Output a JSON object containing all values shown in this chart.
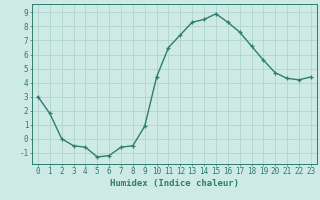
{
  "x": [
    0,
    1,
    2,
    3,
    4,
    5,
    6,
    7,
    8,
    9,
    10,
    11,
    12,
    13,
    14,
    15,
    16,
    17,
    18,
    19,
    20,
    21,
    22,
    23
  ],
  "y": [
    3.0,
    1.8,
    0.0,
    -0.5,
    -0.6,
    -1.3,
    -1.2,
    -0.6,
    -0.5,
    0.9,
    4.4,
    6.5,
    7.4,
    8.3,
    8.5,
    8.9,
    8.3,
    7.6,
    6.6,
    5.6,
    4.7,
    4.3,
    4.2,
    4.4
  ],
  "line_color": "#2e7d6e",
  "marker": "+",
  "marker_size": 3.5,
  "marker_lw": 0.9,
  "line_width": 1.0,
  "bg_color": "#ceeae4",
  "grid_color": "#afd4cc",
  "tick_color": "#2e7d6e",
  "label_color": "#2e7d6e",
  "xlabel": "Humidex (Indice chaleur)",
  "ylim": [
    -1.8,
    9.6
  ],
  "xlim": [
    -0.5,
    23.5
  ],
  "yticks": [
    -1,
    0,
    1,
    2,
    3,
    4,
    5,
    6,
    7,
    8,
    9
  ],
  "xticks": [
    0,
    1,
    2,
    3,
    4,
    5,
    6,
    7,
    8,
    9,
    10,
    11,
    12,
    13,
    14,
    15,
    16,
    17,
    18,
    19,
    20,
    21,
    22,
    23
  ],
  "font_size": 5.5,
  "xlabel_fontsize": 6.5
}
